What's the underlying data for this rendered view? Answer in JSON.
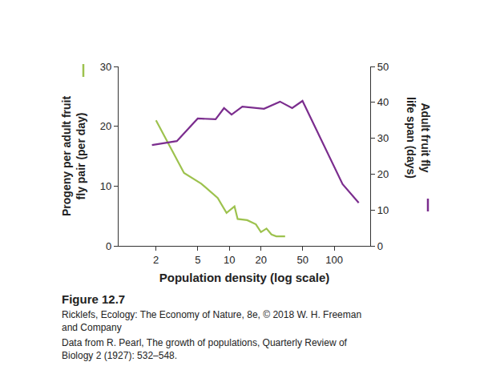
{
  "chart_data": {
    "type": "line",
    "title": "Figure 12.7",
    "annotations": [
      "Ricklefs, Ecology: The Economy of Nature, 8e, © 2018 W. H. Freeman and Company",
      "Data from R. Pearl, The growth of populations, Quarterly Review of Biology 2 (1927): 532–548."
    ],
    "xlabel": "Population density (log scale)",
    "ylabel": "Progeny per adult fruit fly pair (per day)",
    "y2label": "Adult fruit fly life span (days)",
    "log": "x",
    "grid": false,
    "xlim": [
      0.88,
      220
    ],
    "xticks": [
      2,
      5,
      10,
      20,
      50,
      100
    ],
    "ylim": [
      0,
      30
    ],
    "yticks": [
      0,
      10,
      20,
      30
    ],
    "y2lim": [
      0,
      50
    ],
    "y2ticks": [
      0,
      10,
      20,
      30,
      40,
      50
    ],
    "series": [
      {
        "color": "#9dc24e",
        "axis": "y",
        "x": [
          2,
          3.7,
          5.4,
          7.75,
          9.4,
          11.2,
          12,
          14.8,
          17.9,
          20,
          22.6,
          25.2,
          28,
          34
        ],
        "values": [
          21.0,
          12.2,
          10.4,
          8.0,
          5.5,
          6.6,
          4.5,
          4.3,
          3.6,
          2.3,
          2.9,
          1.9,
          1.6,
          1.6
        ]
      },
      {
        "color": "#7b2d8e",
        "axis": "y2",
        "x": [
          1.83,
          3.16,
          5.0,
          7.4,
          8.9,
          10.5,
          13.3,
          21.4,
          30.4,
          39.7,
          49.8,
          120,
          171
        ],
        "values": [
          28.1,
          29.2,
          35.5,
          35.3,
          38.4,
          36.6,
          38.8,
          38.2,
          40.2,
          38.4,
          40.4,
          17.2,
          12.0
        ]
      }
    ]
  }
}
